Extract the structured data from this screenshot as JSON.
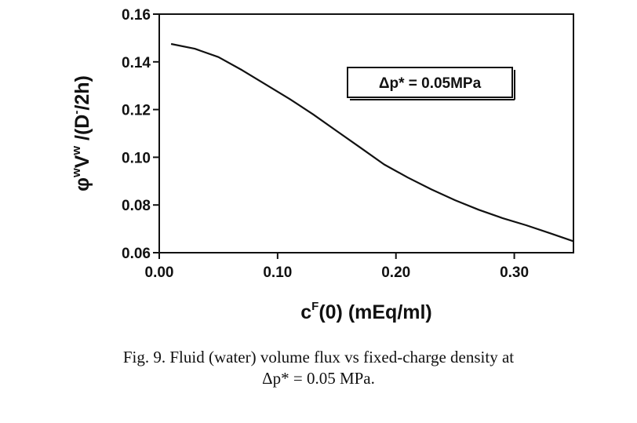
{
  "chart_data": {
    "type": "line",
    "xlabel_main": "c",
    "xlabel_sup": "F",
    "xlabel_rest": "(0) (mEq/ml)",
    "ylabel_parts": [
      "φ",
      "w",
      "V",
      "w",
      " /(D",
      "-",
      "/2h)"
    ],
    "xlim": [
      0.0,
      0.35
    ],
    "ylim": [
      0.06,
      0.16
    ],
    "xticks": [
      0.0,
      0.1,
      0.2,
      0.3
    ],
    "xtick_labels": [
      "0.00",
      "0.10",
      "0.20",
      "0.30"
    ],
    "yticks": [
      0.06,
      0.08,
      0.1,
      0.12,
      0.14,
      0.16
    ],
    "ytick_labels": [
      "0.06",
      "0.08",
      "0.10",
      "0.12",
      "0.14",
      "0.16"
    ],
    "annotation": "Δp* = 0.05MPa",
    "grid": false,
    "series": [
      {
        "x": [
          0.01,
          0.03,
          0.05,
          0.07,
          0.09,
          0.11,
          0.13,
          0.15,
          0.17,
          0.19,
          0.21,
          0.23,
          0.25,
          0.27,
          0.29,
          0.31,
          0.33,
          0.35
        ],
        "y": [
          0.1475,
          0.1455,
          0.142,
          0.1365,
          0.1305,
          0.1245,
          0.118,
          0.111,
          0.104,
          0.097,
          0.0915,
          0.0865,
          0.082,
          0.078,
          0.0745,
          0.0715,
          0.0682,
          0.0648
        ]
      }
    ]
  },
  "caption": {
    "line1": "Fig. 9.  Fluid (water) volume flux vs fixed-charge density at",
    "line2": "Δp* = 0.05 MPa."
  }
}
